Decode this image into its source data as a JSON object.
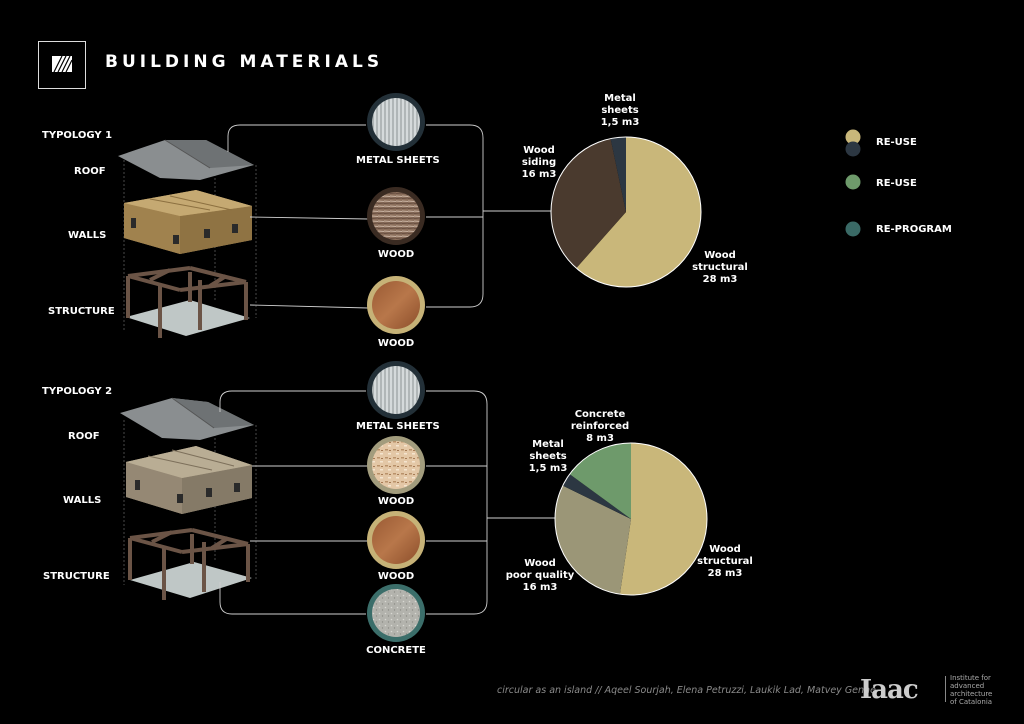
{
  "title": "BUILDING MATERIALS",
  "typologies": [
    {
      "name": "TYPOLOGY 1",
      "layers": [
        "ROOF",
        "WALLS",
        "STRUCTURE"
      ],
      "materials": [
        "METAL SHEETS",
        "WOOD",
        "WOOD"
      ]
    },
    {
      "name": "TYPOLOGY 2",
      "layers": [
        "ROOF",
        "WALLS",
        "STRUCTURE"
      ],
      "materials": [
        "METAL SHEETS",
        "WOOD",
        "WOOD",
        "CONCRETE"
      ]
    }
  ],
  "chart_data": [
    {
      "type": "pie",
      "title": "",
      "slices": [
        {
          "label_lines": [
            "Wood",
            "structural",
            "28 m3"
          ],
          "value": 28,
          "color": "#c9b77a"
        },
        {
          "label_lines": [
            "Wood",
            "siding",
            "16 m3"
          ],
          "value": 16,
          "color": "#4a3a2e"
        },
        {
          "label_lines": [
            "Metal",
            "sheets",
            "1,5 m3"
          ],
          "value": 1.5,
          "color": "#2c3742"
        }
      ]
    },
    {
      "type": "pie",
      "title": "",
      "slices": [
        {
          "label_lines": [
            "Wood",
            "structural",
            "28 m3"
          ],
          "value": 28,
          "color": "#c9b77a"
        },
        {
          "label_lines": [
            "Wood",
            "poor quality",
            "16 m3"
          ],
          "value": 16,
          "color": "#9b9677"
        },
        {
          "label_lines": [
            "Metal",
            "sheets",
            "1,5 m3"
          ],
          "value": 1.5,
          "color": "#2c3742"
        },
        {
          "label_lines": [
            "Concrete",
            "reinforced",
            "8 m3"
          ],
          "value": 8,
          "color": "#6e9a6b"
        }
      ]
    }
  ],
  "legend": [
    {
      "colors": [
        "#c9b77a",
        "#2c3742"
      ],
      "label": "RE-USE"
    },
    {
      "colors": [
        "#6e9a6b"
      ],
      "label": "RE-USE"
    },
    {
      "colors": [
        "#3a6a66"
      ],
      "label": "RE-PROGRAM"
    }
  ],
  "footer": "circular as an island // Aqeel Sourjah, Elena Petruzzi, Laukik Lad, Matvey Genne",
  "logo": {
    "mark": "Iaac",
    "lines": [
      "Institute for",
      "advanced",
      "architecture",
      "of Catalonia"
    ]
  }
}
